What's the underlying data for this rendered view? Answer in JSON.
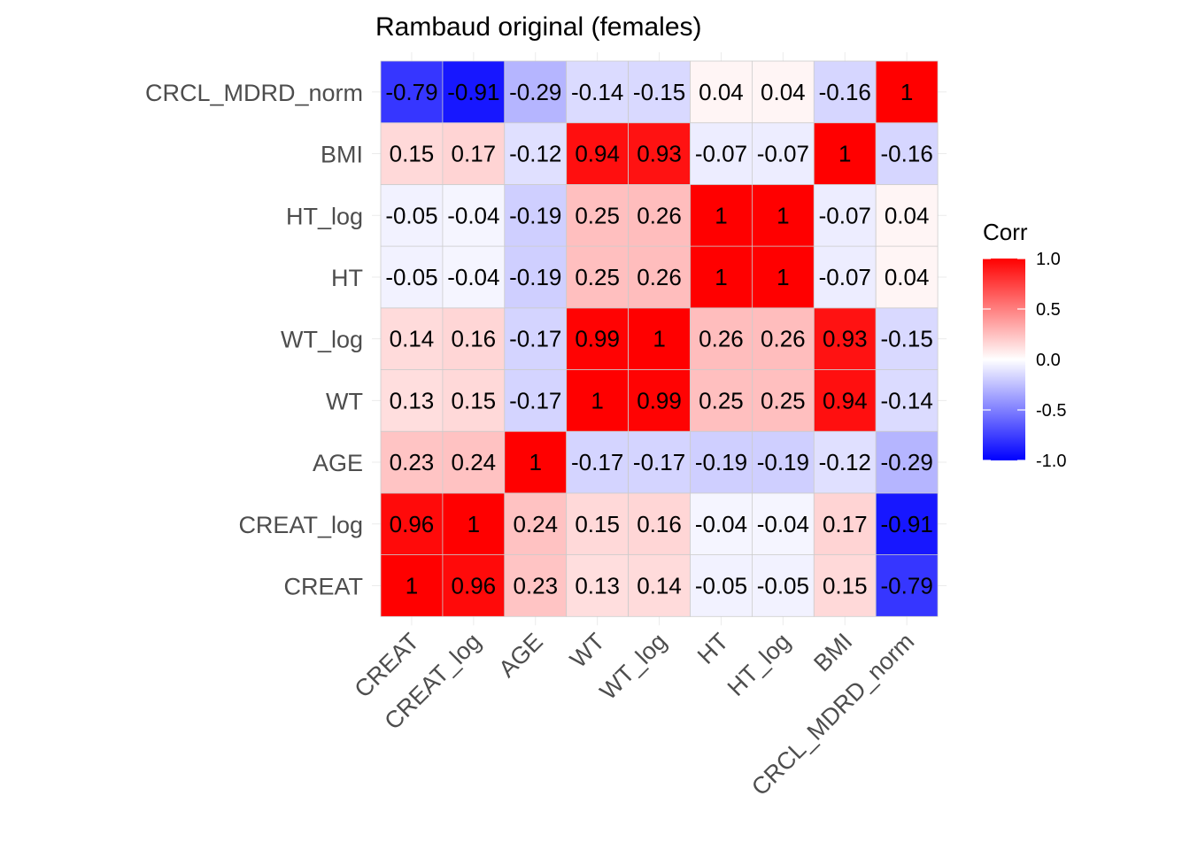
{
  "chart_data": {
    "type": "heatmap",
    "title": "Rambaud original (females)",
    "variables": [
      "CREAT",
      "CREAT_log",
      "AGE",
      "WT",
      "WT_log",
      "HT",
      "HT_log",
      "BMI",
      "CRCL_MDRD_norm"
    ],
    "matrix": [
      [
        1,
        0.96,
        0.23,
        0.13,
        0.14,
        -0.05,
        -0.05,
        0.15,
        -0.79
      ],
      [
        0.96,
        1,
        0.24,
        0.15,
        0.16,
        -0.04,
        -0.04,
        0.17,
        -0.91
      ],
      [
        0.23,
        0.24,
        1,
        -0.17,
        -0.17,
        -0.19,
        -0.19,
        -0.12,
        -0.29
      ],
      [
        0.13,
        0.15,
        -0.17,
        1,
        0.99,
        0.25,
        0.25,
        0.94,
        -0.14
      ],
      [
        0.14,
        0.16,
        -0.17,
        0.99,
        1,
        0.26,
        0.26,
        0.93,
        -0.15
      ],
      [
        -0.05,
        -0.04,
        -0.19,
        0.25,
        0.26,
        1,
        1,
        -0.07,
        0.04
      ],
      [
        -0.05,
        -0.04,
        -0.19,
        0.25,
        0.26,
        1,
        1,
        -0.07,
        0.04
      ],
      [
        0.15,
        0.17,
        -0.12,
        0.94,
        0.93,
        -0.07,
        -0.07,
        1,
        -0.16
      ],
      [
        -0.79,
        -0.91,
        -0.29,
        -0.14,
        -0.15,
        0.04,
        0.04,
        -0.16,
        1
      ]
    ],
    "legend": {
      "title": "Corr",
      "placement": "right",
      "ticks": [
        "1.0",
        "0.5",
        "0.0",
        "-0.5",
        "-1.0"
      ],
      "tick_values": [
        1,
        0.5,
        0,
        -0.5,
        -1
      ]
    },
    "color_scale": {
      "low": "#0000FF",
      "mid": "#FFFFFF",
      "high": "#FF0000",
      "limits": [
        -1,
        1
      ]
    },
    "grid": false
  }
}
